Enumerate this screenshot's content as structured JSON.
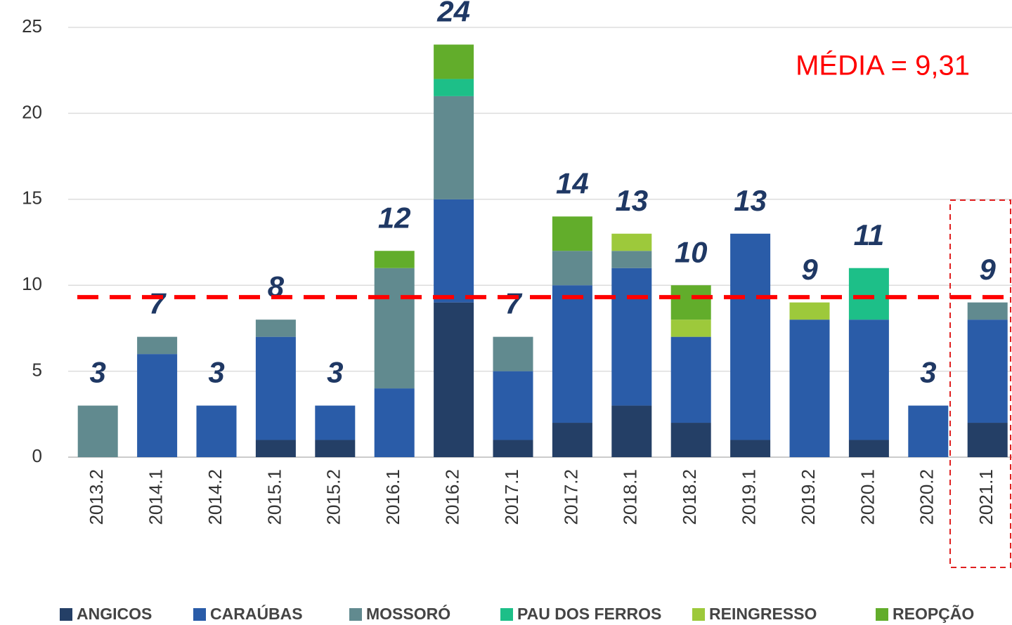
{
  "chart_data": {
    "type": "stacked_bar",
    "categories": [
      "2013.2",
      "2014.1",
      "2014.2",
      "2015.1",
      "2015.2",
      "2016.1",
      "2016.2",
      "2017.1",
      "2017.2",
      "2018.1",
      "2018.2",
      "2019.1",
      "2019.2",
      "2020.1",
      "2020.2",
      "2021.1"
    ],
    "series": [
      {
        "name": "ANGICOS",
        "color": "#243f66",
        "values": [
          0,
          0,
          0,
          1,
          1,
          0,
          9,
          1,
          2,
          3,
          2,
          1,
          0,
          1,
          0,
          2
        ]
      },
      {
        "name": "CARAÚBAS",
        "color": "#2a5ca8",
        "values": [
          0,
          6,
          3,
          6,
          2,
          4,
          6,
          4,
          8,
          8,
          5,
          12,
          8,
          7,
          3,
          6
        ]
      },
      {
        "name": "MOSSORÓ",
        "color": "#618a8f",
        "values": [
          3,
          1,
          0,
          1,
          0,
          7,
          6,
          2,
          2,
          1,
          0,
          0,
          0,
          0,
          0,
          1
        ]
      },
      {
        "name": "PAU DOS FERROS",
        "color": "#1dbf88",
        "values": [
          0,
          0,
          0,
          0,
          0,
          0,
          1,
          0,
          0,
          0,
          0,
          0,
          0,
          3,
          0,
          0
        ]
      },
      {
        "name": "REINGRESSO",
        "color": "#9dc93b",
        "values": [
          0,
          0,
          0,
          0,
          0,
          0,
          0,
          0,
          0,
          1,
          1,
          0,
          1,
          0,
          0,
          0
        ]
      },
      {
        "name": "REOPÇÃO",
        "color": "#62ad2b",
        "values": [
          0,
          0,
          0,
          0,
          0,
          1,
          2,
          0,
          2,
          0,
          2,
          0,
          0,
          0,
          0,
          0
        ]
      }
    ],
    "totals": [
      3,
      7,
      3,
      8,
      3,
      12,
      24,
      7,
      14,
      13,
      10,
      13,
      9,
      11,
      3,
      9
    ],
    "average": {
      "value": 9.31,
      "label": "MÉDIA = 9,31",
      "color": "#ff0000"
    },
    "ylim": [
      0,
      25
    ],
    "yticks": [
      0,
      5,
      10,
      15,
      20,
      25
    ],
    "grid": true
  }
}
